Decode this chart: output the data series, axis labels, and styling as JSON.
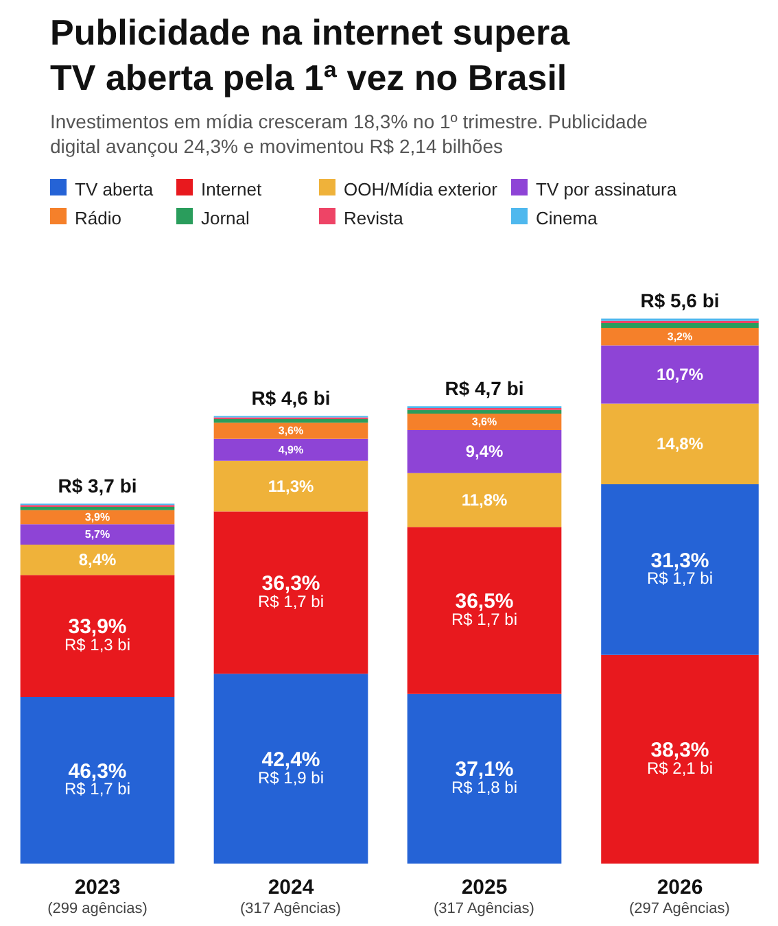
{
  "chart_data": [
    {
      "type": "bar",
      "stacked": true,
      "title": "Publicidade na internet supera TV aberta pela 1ª vez no Brasil",
      "subtitle": "Investimentos em mídia cresceram 18,3% no 1º trimestre. Publicidade digital avançou 24,3% e movimentou R$ 2,14 bilhões",
      "legend": "top",
      "grid": false,
      "categories": [
        "2023"
      ],
      "xlabel": "(299 agências)",
      "totals": [
        "R$ 3,7 bi"
      ],
      "ylim": [
        0,
        163.5
      ],
      "series": [
        {
          "name": "TV aberta",
          "color": "#2563d6",
          "values": [
            46.3
          ],
          "value_labels": [
            "46,3%\nR$ 1,7 bi"
          ]
        },
        {
          "name": "Internet",
          "color": "#e8191e",
          "values": [
            33.9
          ],
          "value_labels": [
            "33,9%\nR$ 1,3 bi"
          ]
        },
        {
          "name": "OOH/Mídia exterior",
          "color": "#efb23a",
          "values": [
            8.4
          ],
          "value_labels": [
            "8,4%"
          ]
        },
        {
          "name": "TV por assinatura",
          "color": "#8e44d6",
          "values": [
            5.7
          ],
          "value_labels": [
            "5,7%"
          ]
        },
        {
          "name": "Rádio",
          "color": "#f5802a",
          "values": [
            3.9
          ],
          "value_labels": [
            "3,9%"
          ]
        },
        {
          "name": "Jornal",
          "color": "#2a9d5c",
          "values": [
            0.9
          ],
          "value_labels": [
            null
          ]
        },
        {
          "name": "Revista",
          "color": "#ee4466",
          "values": [
            0.5
          ],
          "value_labels": [
            null
          ]
        },
        {
          "name": "Cinema",
          "color": "#4fb8ee",
          "values": [
            0.4
          ],
          "value_labels": [
            null
          ]
        }
      ]
    },
    {
      "type": "bar",
      "stacked": true,
      "grid": false,
      "categories": [
        "2024"
      ],
      "xlabel": "(317 Agências)",
      "totals": [
        "R$ 4,6 bi"
      ],
      "ylim": [
        0,
        131.5
      ],
      "series": [
        {
          "color": "#2563d6",
          "values": [
            42.4
          ],
          "value_labels": [
            "42,4%\nR$ 1,9 bi"
          ]
        },
        {
          "color": "#e8191e",
          "values": [
            36.3
          ],
          "value_labels": [
            "36,3%\nR$ 1,7 bi"
          ]
        },
        {
          "color": "#efb23a",
          "values": [
            11.3
          ],
          "value_labels": [
            "11,3%"
          ]
        },
        {
          "color": "#8e44d6",
          "values": [
            4.9
          ],
          "value_labels": [
            "4,9%"
          ]
        },
        {
          "color": "#f5802a",
          "values": [
            3.6
          ],
          "value_labels": [
            "3,6%"
          ]
        },
        {
          "color": "#2a9d5c",
          "values": [
            0.8
          ],
          "value_labels": [
            null
          ]
        },
        {
          "color": "#ee4466",
          "values": [
            0.4
          ],
          "value_labels": [
            null
          ]
        },
        {
          "color": "#4fb8ee",
          "values": [
            0.3
          ],
          "value_labels": [
            null
          ]
        }
      ]
    },
    {
      "type": "bar",
      "stacked": true,
      "grid": false,
      "categories": [
        "2025"
      ],
      "xlabel": "(317 Agências)",
      "totals": [
        "R$ 4,7 bi"
      ],
      "ylim": [
        0,
        128.7
      ],
      "series": [
        {
          "color": "#2563d6",
          "values": [
            37.1
          ],
          "value_labels": [
            "37,1%\nR$ 1,8 bi"
          ]
        },
        {
          "color": "#e8191e",
          "values": [
            36.5
          ],
          "value_labels": [
            "36,5%\nR$ 1,7 bi"
          ]
        },
        {
          "color": "#efb23a",
          "values": [
            11.8
          ],
          "value_labels": [
            "11,8%"
          ]
        },
        {
          "color": "#8e44d6",
          "values": [
            9.4
          ],
          "value_labels": [
            "9,4%"
          ]
        },
        {
          "color": "#f5802a",
          "values": [
            3.6
          ],
          "value_labels": [
            "3,6%"
          ]
        },
        {
          "color": "#2a9d5c",
          "values": [
            0.8
          ],
          "value_labels": [
            null
          ]
        },
        {
          "color": "#ee4466",
          "values": [
            0.4
          ],
          "value_labels": [
            null
          ]
        },
        {
          "color": "#4fb8ee",
          "values": [
            0.4
          ],
          "value_labels": [
            null
          ]
        }
      ]
    },
    {
      "type": "bar",
      "stacked": true,
      "grid": false,
      "categories": [
        "2026"
      ],
      "xlabel": "(297 Agências)",
      "totals": [
        "R$ 5,6 bi"
      ],
      "ylim": [
        0,
        108
      ],
      "series": [
        {
          "color": "#e8191e",
          "values": [
            38.3
          ],
          "value_labels": [
            "38,3%\nR$ 2,1 bi"
          ]
        },
        {
          "color": "#2563d6",
          "values": [
            31.3
          ],
          "value_labels": [
            "31,3%\nR$ 1,7 bi"
          ]
        },
        {
          "color": "#efb23a",
          "values": [
            14.8
          ],
          "value_labels": [
            "14,8%"
          ]
        },
        {
          "color": "#8e44d6",
          "values": [
            10.7
          ],
          "value_labels": [
            "10,7%"
          ]
        },
        {
          "color": "#f5802a",
          "values": [
            3.2
          ],
          "value_labels": [
            "3,2%"
          ]
        },
        {
          "color": "#2a9d5c",
          "values": [
            0.9
          ],
          "value_labels": [
            null
          ]
        },
        {
          "color": "#ee4466",
          "values": [
            0.4
          ],
          "value_labels": [
            null
          ]
        },
        {
          "color": "#4fb8ee",
          "values": [
            0.4
          ],
          "value_labels": [
            null
          ]
        }
      ]
    }
  ]
}
